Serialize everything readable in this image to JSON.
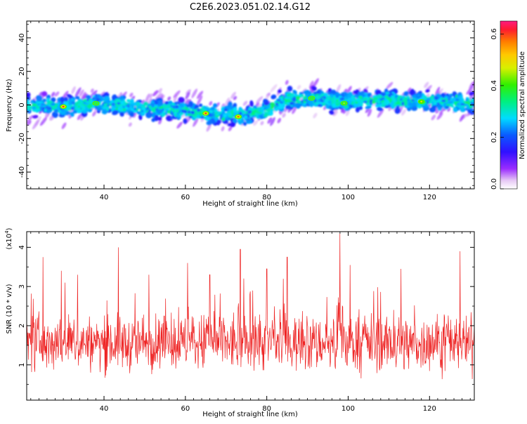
{
  "figure_title": "C2E6.2023.051.02.14.G12",
  "chart_data": [
    {
      "type": "heatmap",
      "xlabel": "Height of straight line (km)",
      "ylabel": "Frequency (Hz)",
      "xlim": [
        21,
        131
      ],
      "ylim": [
        -50,
        50
      ],
      "xticks": [
        40,
        60,
        80,
        100,
        120
      ],
      "yticks": [
        -40,
        -20,
        0,
        20,
        40
      ],
      "colorbar": {
        "label": "Normalized spectral amplitude",
        "range": [
          0,
          0.65
        ],
        "ticks": [
          "0.0",
          "0.2",
          "0.4",
          "0.6"
        ],
        "tick_values": [
          0,
          0.2,
          0.4,
          0.6
        ]
      },
      "band": {
        "center": [
          [
            21,
            0
          ],
          [
            30,
            -1
          ],
          [
            40,
            1
          ],
          [
            50,
            -2
          ],
          [
            60,
            -3
          ],
          [
            65,
            -5
          ],
          [
            75,
            -6
          ],
          [
            80,
            -3
          ],
          [
            85,
            3
          ],
          [
            90,
            4
          ],
          [
            100,
            2
          ],
          [
            110,
            3
          ],
          [
            120,
            2
          ],
          [
            131,
            1
          ]
        ],
        "halfwidth_hz": 8,
        "outer_halfwidth_hz": 14
      },
      "peaks": [
        {
          "x": 30,
          "y": -1,
          "value": 0.6
        },
        {
          "x": 65,
          "y": -5,
          "value": 0.6
        },
        {
          "x": 73,
          "y": -7,
          "value": 0.58
        },
        {
          "x": 118,
          "y": 2,
          "value": 0.5
        },
        {
          "x": 99,
          "y": 1,
          "value": 0.45
        },
        {
          "x": 38,
          "y": 1,
          "value": 0.42
        },
        {
          "x": 91,
          "y": 4,
          "value": 0.42
        }
      ]
    },
    {
      "type": "line",
      "xlabel": "Height of straight line (km)",
      "ylabel": "SNR (10 * v/v)",
      "scale_label": "(x10",
      "scale_exp": "4",
      "scale_close": ")",
      "xlim": [
        21,
        131
      ],
      "ylim": [
        0.1,
        4.4
      ],
      "xticks": [
        40,
        60,
        80,
        100,
        120
      ],
      "yticks": [
        1,
        2,
        3,
        4
      ],
      "series": [
        {
          "color": "#ee2222",
          "x_start": 21,
          "x_end": 131,
          "n_points": 1100,
          "mean": 1.55,
          "spread": 0.9,
          "peaks": [
            {
              "x": 98,
              "y": 4.35
            },
            {
              "x": 43.5,
              "y": 4.0
            },
            {
              "x": 73.5,
              "y": 3.95
            },
            {
              "x": 127.5,
              "y": 3.9
            },
            {
              "x": 25,
              "y": 3.75
            },
            {
              "x": 85,
              "y": 3.75
            },
            {
              "x": 60.5,
              "y": 3.6
            },
            {
              "x": 100.5,
              "y": 3.55
            },
            {
              "x": 29.5,
              "y": 3.4
            },
            {
              "x": 80,
              "y": 3.45
            },
            {
              "x": 113,
              "y": 3.45
            },
            {
              "x": 33.5,
              "y": 3.3
            },
            {
              "x": 51,
              "y": 3.3
            },
            {
              "x": 66,
              "y": 3.3
            }
          ]
        }
      ]
    }
  ]
}
